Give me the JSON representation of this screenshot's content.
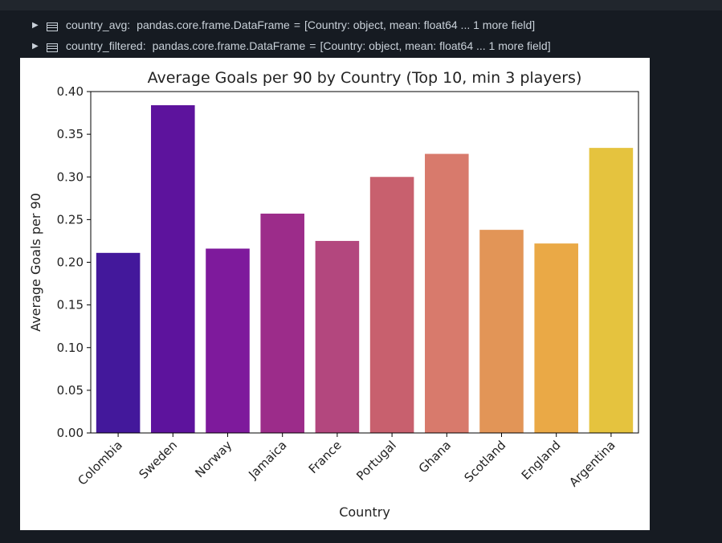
{
  "variables": [
    {
      "name": "country_avg:",
      "type": "pandas.core.frame.DataFrame",
      "eq": "=",
      "summary": "[Country: object, mean: float64 ... 1 more field]"
    },
    {
      "name": "country_filtered:",
      "type": "pandas.core.frame.DataFrame",
      "eq": "=",
      "summary": "[Country: object, mean: float64 ... 1 more field]"
    }
  ],
  "chart_data": {
    "type": "bar",
    "title": "Average Goals per 90 by Country (Top 10, min 3 players)",
    "xlabel": "Country",
    "ylabel": "Average Goals per 90",
    "categories": [
      "Colombia",
      "Sweden",
      "Norway",
      "Jamaica",
      "France",
      "Portugal",
      "Ghana",
      "Scotland",
      "England",
      "Argentina"
    ],
    "values": [
      0.211,
      0.384,
      0.216,
      0.257,
      0.225,
      0.3,
      0.327,
      0.238,
      0.222,
      0.334
    ],
    "colors": [
      "#43189b",
      "#5d139d",
      "#7e1a9c",
      "#9c2c8a",
      "#b3477e",
      "#c8606e",
      "#d87a6c",
      "#e29557",
      "#eaa946",
      "#e5c33e"
    ],
    "ylim": [
      0,
      0.4
    ],
    "yticks": [
      "0.00",
      "0.05",
      "0.10",
      "0.15",
      "0.20",
      "0.25",
      "0.30",
      "0.35",
      "0.40"
    ],
    "grid": false,
    "palette": "plasma"
  }
}
